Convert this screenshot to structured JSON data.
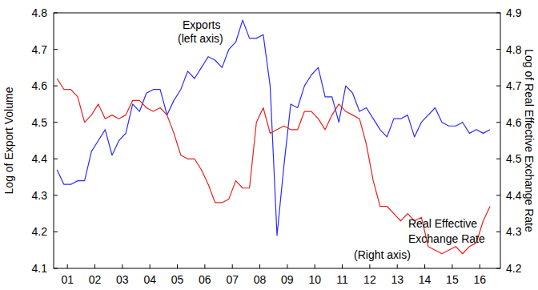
{
  "chart_data": {
    "type": "line",
    "y_label": "Log of Export Volume",
    "y2_label": "Log of Real Effective Exchange Rate",
    "annotations": [
      "Exports",
      "(left axis)",
      "Real Effective",
      "Exchange Rate",
      "(Right axis)"
    ],
    "x": [
      2001.125,
      2001.375,
      2001.625,
      2001.875,
      2002.125,
      2002.375,
      2002.625,
      2002.875,
      2003.125,
      2003.375,
      2003.625,
      2003.875,
      2004.125,
      2004.375,
      2004.625,
      2004.875,
      2005.125,
      2005.375,
      2005.625,
      2005.875,
      2006.125,
      2006.375,
      2006.625,
      2006.875,
      2007.125,
      2007.375,
      2007.625,
      2007.875,
      2008.125,
      2008.375,
      2008.625,
      2008.875,
      2009.125,
      2009.375,
      2009.625,
      2009.875,
      2010.125,
      2010.375,
      2010.625,
      2010.875,
      2011.125,
      2011.375,
      2011.625,
      2011.875,
      2012.125,
      2012.375,
      2012.625,
      2012.875,
      2013.125,
      2013.375,
      2013.625,
      2013.875,
      2014.125,
      2014.375,
      2014.625,
      2014.875,
      2015.125,
      2015.375,
      2015.625,
      2015.875,
      2016.125,
      2016.375,
      2016.625,
      2016.875
    ],
    "xlim": [
      2001,
      2017.25
    ],
    "xticks": [
      {
        "value": 2001.5,
        "label": "01"
      },
      {
        "value": 2002.5,
        "label": "02"
      },
      {
        "value": 2003.5,
        "label": "03"
      },
      {
        "value": 2004.5,
        "label": "04"
      },
      {
        "value": 2005.5,
        "label": "05"
      },
      {
        "value": 2006.5,
        "label": "06"
      },
      {
        "value": 2007.5,
        "label": "07"
      },
      {
        "value": 2008.5,
        "label": "08"
      },
      {
        "value": 2009.5,
        "label": "09"
      },
      {
        "value": 2010.5,
        "label": "10"
      },
      {
        "value": 2011.5,
        "label": "11"
      },
      {
        "value": 2012.5,
        "label": "12"
      },
      {
        "value": 2013.5,
        "label": "13"
      },
      {
        "value": 2014.5,
        "label": "14"
      },
      {
        "value": 2015.5,
        "label": "15"
      },
      {
        "value": 2016.5,
        "label": "16"
      }
    ],
    "ylim": [
      4.1,
      4.8
    ],
    "yticks": [
      4.1,
      4.2,
      4.3,
      4.4,
      4.5,
      4.6,
      4.7,
      4.8
    ],
    "y2lim": [
      4.2,
      4.9
    ],
    "y2ticks": [
      4.2,
      4.3,
      4.4,
      4.5,
      4.6,
      4.7,
      4.8,
      4.9
    ],
    "grid": false,
    "series": [
      {
        "name": "Exports",
        "color": "#2b2bff",
        "values": [
          4.37,
          4.33,
          4.33,
          4.34,
          4.34,
          4.42,
          4.45,
          4.48,
          4.41,
          4.45,
          4.47,
          4.55,
          4.53,
          4.58,
          4.59,
          4.59,
          4.52,
          4.56,
          4.59,
          4.64,
          4.62,
          4.65,
          4.68,
          4.67,
          4.65,
          4.7,
          4.72,
          4.78,
          4.73,
          4.73,
          4.74,
          4.6,
          4.19,
          4.38,
          4.55,
          4.54,
          4.6,
          4.63,
          4.65,
          4.57,
          4.57,
          4.5,
          4.6,
          4.58,
          4.53,
          4.54,
          4.51,
          4.48,
          4.46,
          4.51,
          4.51,
          4.52,
          4.46,
          4.5,
          4.52,
          4.54,
          4.5,
          4.49,
          4.49,
          4.5,
          4.47,
          4.48,
          4.47,
          4.48
        ]
      },
      {
        "name": "Real Effective Exchange Rate",
        "color": "#e8201c",
        "axis": "y2",
        "values": [
          4.72,
          4.69,
          4.69,
          4.67,
          4.6,
          4.62,
          4.65,
          4.61,
          4.62,
          4.61,
          4.62,
          4.66,
          4.66,
          4.64,
          4.63,
          4.64,
          4.62,
          4.57,
          4.51,
          4.5,
          4.5,
          4.47,
          4.43,
          4.38,
          4.38,
          4.39,
          4.44,
          4.42,
          4.42,
          4.6,
          4.64,
          4.57,
          4.58,
          4.59,
          4.58,
          4.58,
          4.63,
          4.63,
          4.61,
          4.58,
          4.62,
          4.65,
          4.63,
          4.62,
          4.61,
          4.54,
          4.44,
          4.37,
          4.37,
          4.35,
          4.33,
          4.35,
          4.33,
          4.34,
          4.26,
          4.25,
          4.24,
          4.25,
          4.26,
          4.24,
          4.26,
          4.27,
          4.33,
          4.37
        ]
      }
    ]
  }
}
